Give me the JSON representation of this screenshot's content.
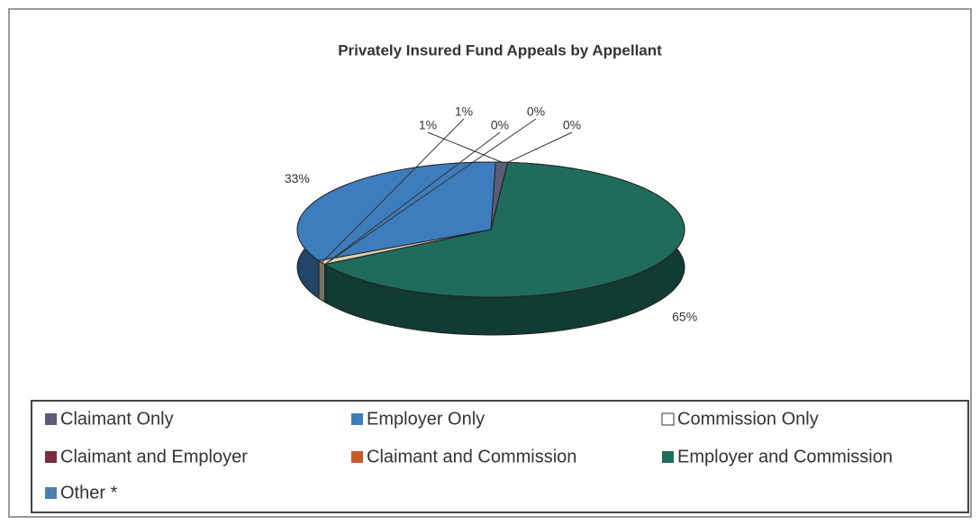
{
  "chart_data": {
    "type": "pie",
    "title": "Privately Insured Fund Appeals by Appellant",
    "categories": [
      "Claimant Only",
      "Employer Only",
      "Commission Only",
      "Claimant and Employer",
      "Claimant and Commission",
      "Employer and Commission",
      "Other *"
    ],
    "values": [
      1,
      33,
      1,
      0,
      0,
      65,
      0
    ],
    "value_labels": [
      "1%",
      "33%",
      "1%",
      "0%",
      "0%",
      "65%",
      "0%"
    ],
    "colors": [
      "#5c5c7a",
      "#3d7dbd",
      "#ffffff",
      "#7b2c3e",
      "#c8582c",
      "#1f6b5c",
      "#4a80ad"
    ],
    "legend": "bottom"
  }
}
